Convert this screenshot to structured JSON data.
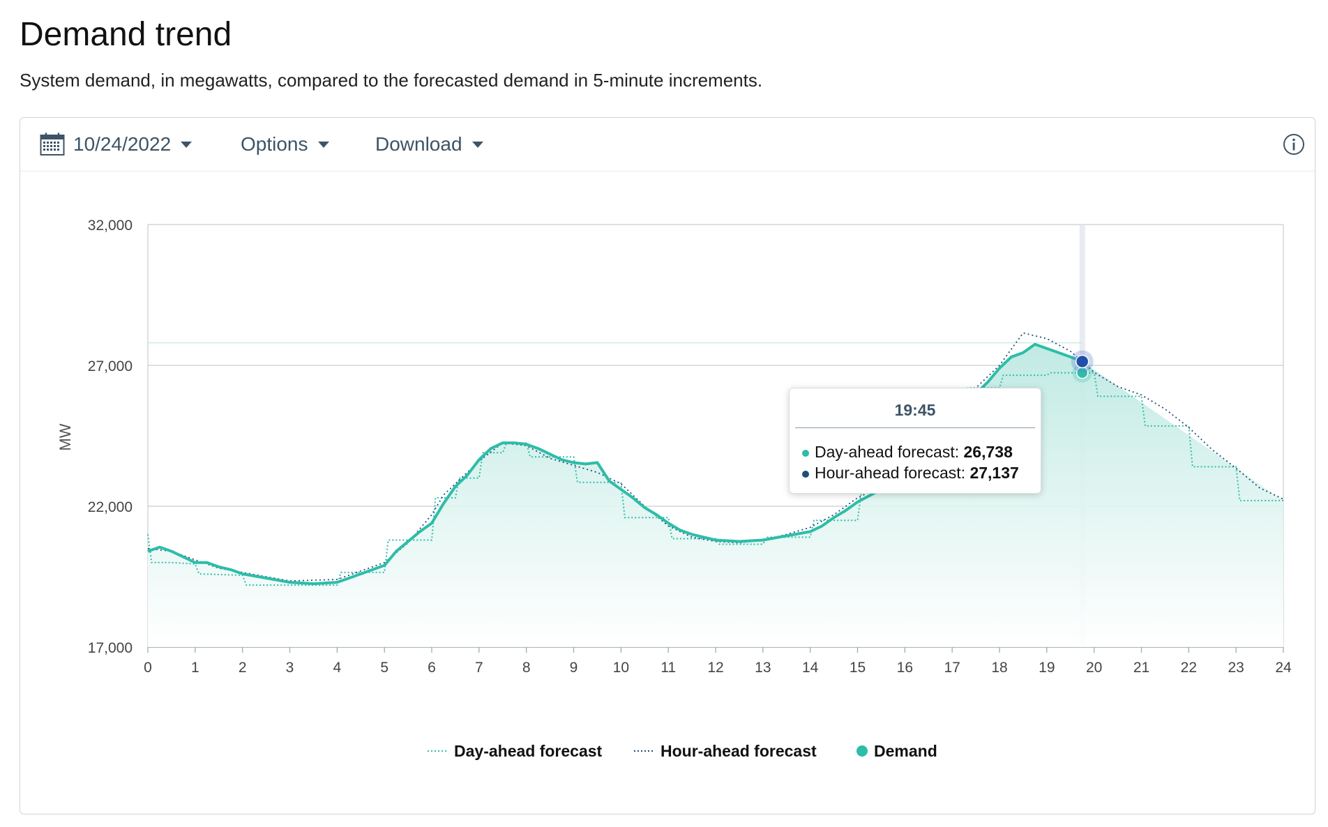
{
  "header": {
    "title": "Demand trend",
    "subtitle": "System demand, in megawatts, compared to the forecasted demand in 5-minute increments."
  },
  "toolbar": {
    "date_label": "10/24/2022",
    "options_label": "Options",
    "download_label": "Download"
  },
  "icons": {
    "date": "calendar-icon",
    "info": "info-icon",
    "dropdown": "caret-down-icon"
  },
  "colors": {
    "demand": "#2dbda8",
    "day_ahead": "#2dbda8",
    "hour_ahead": "#1f4e79",
    "fill_top": "#c7ede6",
    "hover_line": "#e3e6ef",
    "grid": "#c8cdd1"
  },
  "tooltip": {
    "time": "19:45",
    "day_ahead_label": "Day-ahead forecast: ",
    "day_ahead_value": "26,738",
    "hour_ahead_label": "Hour-ahead forecast: ",
    "hour_ahead_value": "27,137"
  },
  "chart_data": {
    "type": "line",
    "title": "",
    "xlabel": "",
    "ylabel": "MW",
    "xlim": [
      0,
      24
    ],
    "ylim": [
      17000,
      32000
    ],
    "x_ticks": [
      0,
      1,
      2,
      3,
      4,
      5,
      6,
      7,
      8,
      9,
      10,
      11,
      12,
      13,
      14,
      15,
      16,
      17,
      18,
      19,
      20,
      21,
      22,
      23,
      24
    ],
    "y_ticks": [
      17000,
      22000,
      27000,
      32000
    ],
    "y_tick_labels": [
      "17,000",
      "22,000",
      "27,000",
      "32,000"
    ],
    "grid": true,
    "legend": {
      "position": "bottom-center",
      "entries": [
        "Day-ahead forecast",
        "Hour-ahead forecast",
        "Demand"
      ]
    },
    "hover_x": 19.75,
    "series": [
      {
        "name": "Demand",
        "style": "solid-area",
        "points": [
          [
            0,
            20400
          ],
          [
            0.25,
            20550
          ],
          [
            0.5,
            20400
          ],
          [
            0.75,
            20200
          ],
          [
            1,
            20000
          ],
          [
            1.25,
            20000
          ],
          [
            1.5,
            19850
          ],
          [
            1.75,
            19750
          ],
          [
            2,
            19600
          ],
          [
            2.5,
            19450
          ],
          [
            3,
            19300
          ],
          [
            3.5,
            19250
          ],
          [
            4,
            19300
          ],
          [
            4.5,
            19600
          ],
          [
            5,
            19900
          ],
          [
            5.25,
            20400
          ],
          [
            5.5,
            20750
          ],
          [
            5.75,
            21100
          ],
          [
            6,
            21400
          ],
          [
            6.25,
            22100
          ],
          [
            6.5,
            22700
          ],
          [
            6.75,
            23100
          ],
          [
            7,
            23650
          ],
          [
            7.25,
            24050
          ],
          [
            7.5,
            24250
          ],
          [
            7.75,
            24250
          ],
          [
            8,
            24200
          ],
          [
            8.25,
            24050
          ],
          [
            8.5,
            23850
          ],
          [
            8.75,
            23650
          ],
          [
            9,
            23550
          ],
          [
            9.25,
            23500
          ],
          [
            9.5,
            23550
          ],
          [
            9.75,
            22900
          ],
          [
            10,
            22600
          ],
          [
            10.25,
            22300
          ],
          [
            10.5,
            21950
          ],
          [
            10.75,
            21700
          ],
          [
            11,
            21400
          ],
          [
            11.25,
            21150
          ],
          [
            11.5,
            21000
          ],
          [
            12,
            20800
          ],
          [
            12.5,
            20750
          ],
          [
            13,
            20800
          ],
          [
            13.5,
            20950
          ],
          [
            14,
            21100
          ],
          [
            14.25,
            21300
          ],
          [
            14.5,
            21600
          ],
          [
            14.75,
            21850
          ],
          [
            15,
            22150
          ],
          [
            15.5,
            22600
          ],
          [
            16,
            23200
          ],
          [
            16.5,
            23900
          ],
          [
            17,
            24700
          ],
          [
            17.25,
            25400
          ],
          [
            17.5,
            26000
          ],
          [
            17.75,
            26400
          ],
          [
            18,
            26900
          ],
          [
            18.25,
            27300
          ],
          [
            18.5,
            27450
          ],
          [
            18.75,
            27750
          ],
          [
            19,
            27600
          ],
          [
            19.25,
            27450
          ],
          [
            19.5,
            27300
          ],
          [
            19.75,
            27137
          ]
        ]
      },
      {
        "name": "Day-ahead forecast",
        "style": "dotted-step",
        "points": [
          [
            0,
            21000
          ],
          [
            0.08,
            20000
          ],
          [
            0.5,
            20000
          ],
          [
            1,
            19950
          ],
          [
            1.08,
            19600
          ],
          [
            2,
            19550
          ],
          [
            2.08,
            19200
          ],
          [
            3,
            19200
          ],
          [
            3.5,
            19200
          ],
          [
            4,
            19200
          ],
          [
            4.08,
            19650
          ],
          [
            5,
            19650
          ],
          [
            5.08,
            20800
          ],
          [
            6,
            20800
          ],
          [
            6.08,
            22300
          ],
          [
            6.5,
            22300
          ],
          [
            6.58,
            23000
          ],
          [
            7,
            23000
          ],
          [
            7.08,
            23900
          ],
          [
            7.5,
            23900
          ],
          [
            7.58,
            24250
          ],
          [
            8,
            24250
          ],
          [
            8.08,
            23750
          ],
          [
            9,
            23750
          ],
          [
            9.08,
            22850
          ],
          [
            10,
            22850
          ],
          [
            10.08,
            21600
          ],
          [
            11,
            21600
          ],
          [
            11.08,
            20850
          ],
          [
            12,
            20850
          ],
          [
            12.08,
            20650
          ],
          [
            13,
            20650
          ],
          [
            13.08,
            20900
          ],
          [
            14,
            20900
          ],
          [
            14.08,
            21500
          ],
          [
            15,
            21500
          ],
          [
            15.08,
            22500
          ],
          [
            16,
            22500
          ],
          [
            16.08,
            23500
          ],
          [
            17,
            23500
          ],
          [
            17.08,
            25500
          ],
          [
            17.25,
            25500
          ],
          [
            17.33,
            26200
          ],
          [
            18,
            26200
          ],
          [
            18.08,
            26650
          ],
          [
            19,
            26650
          ],
          [
            19.08,
            26738
          ],
          [
            19.75,
            26738
          ],
          [
            20,
            26738
          ],
          [
            20.08,
            25900
          ],
          [
            21,
            25900
          ],
          [
            21.08,
            24850
          ],
          [
            22,
            24850
          ],
          [
            22.08,
            23400
          ],
          [
            23,
            23400
          ],
          [
            23.08,
            22200
          ],
          [
            24,
            22200
          ]
        ]
      },
      {
        "name": "Hour-ahead forecast",
        "style": "dotted",
        "points": [
          [
            0,
            20500
          ],
          [
            0.5,
            20400
          ],
          [
            1,
            20100
          ],
          [
            1.5,
            19800
          ],
          [
            2,
            19650
          ],
          [
            3,
            19350
          ],
          [
            4,
            19400
          ],
          [
            5,
            20000
          ],
          [
            5.5,
            20700
          ],
          [
            6,
            21700
          ],
          [
            6.25,
            22400
          ],
          [
            6.5,
            22800
          ],
          [
            7,
            23600
          ],
          [
            7.5,
            24250
          ],
          [
            8,
            24150
          ],
          [
            8.5,
            23700
          ],
          [
            9,
            23450
          ],
          [
            9.5,
            23200
          ],
          [
            10,
            22800
          ],
          [
            10.5,
            22000
          ],
          [
            11,
            21300
          ],
          [
            11.5,
            20900
          ],
          [
            12,
            20750
          ],
          [
            12.5,
            20700
          ],
          [
            13,
            20800
          ],
          [
            13.5,
            21000
          ],
          [
            14,
            21250
          ],
          [
            14.5,
            21700
          ],
          [
            15,
            22300
          ],
          [
            15.5,
            22700
          ],
          [
            16,
            23500
          ],
          [
            16.5,
            24300
          ],
          [
            17,
            25200
          ],
          [
            17.5,
            26200
          ],
          [
            18,
            27000
          ],
          [
            18.5,
            28150
          ],
          [
            19,
            27950
          ],
          [
            19.5,
            27500
          ],
          [
            19.75,
            27137
          ],
          [
            20,
            26750
          ],
          [
            20.5,
            26250
          ],
          [
            21,
            25950
          ],
          [
            21.5,
            25450
          ],
          [
            22,
            24800
          ],
          [
            22.5,
            24000
          ],
          [
            23,
            23350
          ],
          [
            23.5,
            22650
          ],
          [
            24,
            22250
          ]
        ]
      }
    ]
  }
}
